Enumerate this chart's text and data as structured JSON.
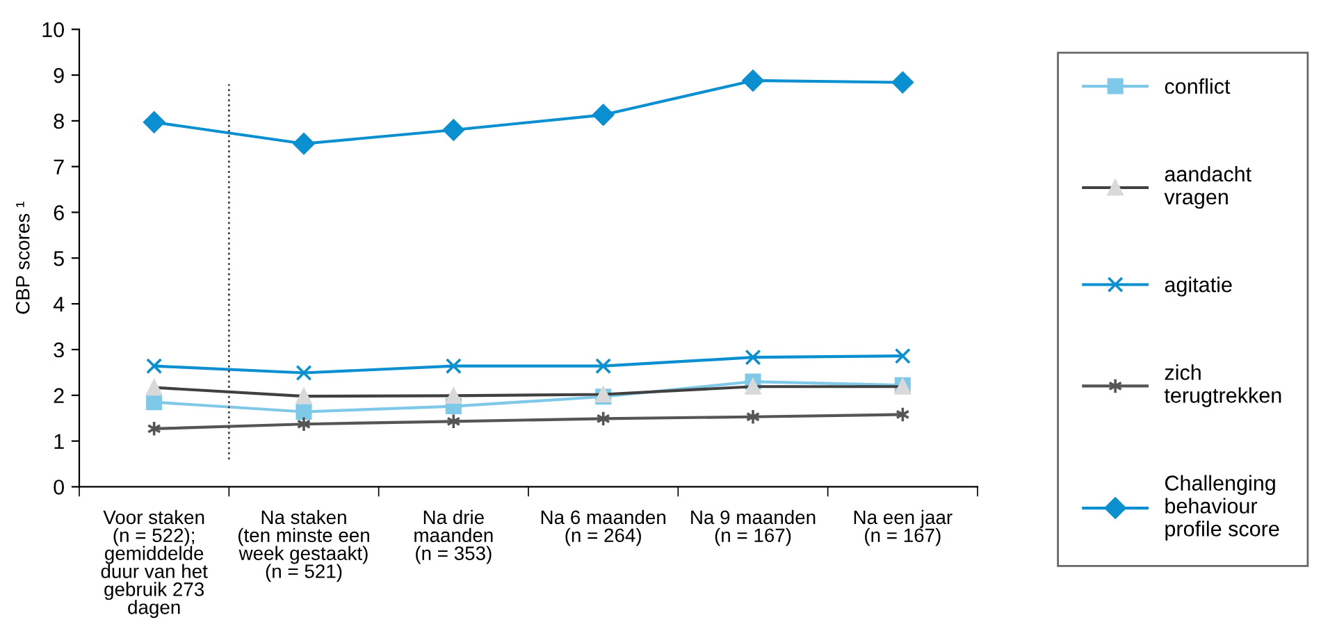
{
  "chart_data": {
    "type": "line",
    "ylabel": "CBP scores ¹",
    "categories": [
      "Voor staken\n(n = 522);\ngemiddelde\nduur van het\ngebruik 273\ndagen",
      "Na staken\n(ten minste een\nweek gestaakt)\n(n = 521)",
      "Na drie\nmaanden\n(n = 353)",
      "Na 6 maanden\n(n = 264)",
      "Na 9 maanden\n(n = 167)",
      "Na een jaar\n(n = 167)"
    ],
    "series": [
      {
        "name": "conflict",
        "color": "#7ec8e8",
        "marker": "square",
        "values": [
          1.85,
          1.64,
          1.76,
          1.97,
          2.3,
          2.22
        ]
      },
      {
        "name": "aandacht\nvragen",
        "color": "#404040",
        "marker": "triangle",
        "values": [
          2.17,
          1.98,
          1.99,
          2.02,
          2.19,
          2.19
        ]
      },
      {
        "name": "agitatie",
        "color": "#0a8fd0",
        "marker": "cross",
        "values": [
          2.64,
          2.49,
          2.64,
          2.64,
          2.83,
          2.86
        ]
      },
      {
        "name": "zich\nterugtrekken",
        "color": "#555555",
        "marker": "cross",
        "values": [
          1.27,
          1.37,
          1.43,
          1.49,
          1.53,
          1.58
        ]
      },
      {
        "name": "Challenging\nbehaviour\nprofile score",
        "color": "#0a8fd0",
        "marker": "diamond",
        "values": [
          7.97,
          7.5,
          7.8,
          8.13,
          8.88,
          8.84
        ]
      }
    ],
    "ylim": [
      0,
      10
    ],
    "yticks": [
      0,
      1,
      2,
      3,
      4,
      5,
      6,
      7,
      8,
      9,
      10
    ],
    "grid": false,
    "legend": "right"
  }
}
